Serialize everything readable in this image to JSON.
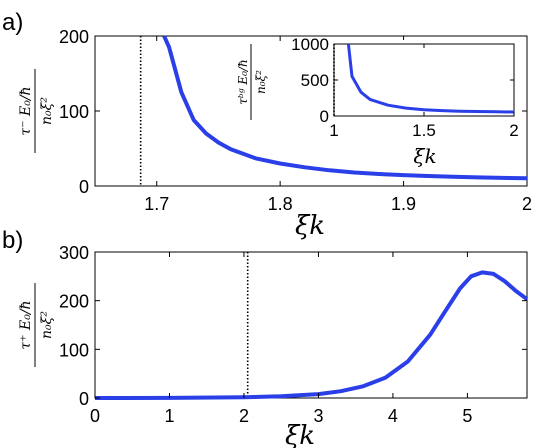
{
  "panel_labels": [
    "a)",
    "b)"
  ],
  "colors": {
    "curve": "#2a3fe8",
    "axis": "#000000",
    "marker_line": "#000000"
  },
  "chart_data": [
    {
      "id": "a",
      "type": "line",
      "xlabel": "ξk",
      "ylabel_num": "τ⁻ E₀/ħ",
      "ylabel_den": "n₀ξ²",
      "xlim": [
        1.65,
        2.0
      ],
      "ylim": [
        0,
        200
      ],
      "xticks": [
        1.7,
        1.8,
        1.9,
        2.0
      ],
      "xtick_labels": [
        "1.7",
        "1.8",
        "1.9",
        "2"
      ],
      "yticks": [
        0,
        100,
        200
      ],
      "ytick_labels": [
        "0",
        "100",
        "200"
      ],
      "vline_x": 1.687,
      "series": [
        {
          "x": [
            1.706,
            1.71,
            1.72,
            1.73,
            1.74,
            1.75,
            1.76,
            1.78,
            1.8,
            1.82,
            1.84,
            1.86,
            1.88,
            1.9,
            1.92,
            1.94,
            1.96,
            1.98,
            2.0
          ],
          "y": [
            210,
            185,
            125,
            88,
            70,
            58,
            49,
            37,
            30,
            25,
            21,
            18,
            16,
            14.5,
            13.3,
            12.3,
            11.5,
            10.8,
            10.3
          ]
        }
      ],
      "inset": {
        "type": "line",
        "xlabel": "ξk",
        "ylabel_num": "τᵇᵍ E₀/ħ",
        "ylabel_den": "n₀ξ²",
        "xlim": [
          1.0,
          2.0
        ],
        "ylim": [
          0,
          1000
        ],
        "xticks": [
          1.0,
          1.5,
          2.0
        ],
        "xtick_labels": [
          "1",
          "1.5",
          "2"
        ],
        "yticks": [
          0,
          500,
          1000
        ],
        "ytick_labels": [
          "0",
          "500",
          "1000"
        ],
        "vline_x": 1.0,
        "series": [
          {
            "x": [
              1.08,
              1.1,
              1.15,
              1.2,
              1.3,
              1.4,
              1.5,
              1.6,
              1.7,
              1.8,
              1.9,
              2.0
            ],
            "y": [
              1000,
              550,
              330,
              230,
              150,
              110,
              88,
              75,
              67,
              62,
              58,
              55
            ]
          }
        ]
      }
    },
    {
      "id": "b",
      "type": "line",
      "xlabel": "ξk",
      "ylabel_num": "τ⁺ E₀/ħ",
      "ylabel_den": "n₀ξ²",
      "xlim": [
        0,
        5.8
      ],
      "ylim": [
        0,
        300
      ],
      "xticks": [
        0,
        1,
        2,
        3,
        4,
        5
      ],
      "xtick_labels": [
        "0",
        "1",
        "2",
        "3",
        "4",
        "5"
      ],
      "yticks": [
        0,
        100,
        200,
        300
      ],
      "ytick_labels": [
        "0",
        "100",
        "200",
        "300"
      ],
      "vline_x": 2.05,
      "series": [
        {
          "x": [
            0,
            1,
            2,
            2.5,
            3,
            3.3,
            3.6,
            3.9,
            4.2,
            4.5,
            4.7,
            4.9,
            5.05,
            5.2,
            5.35,
            5.5,
            5.65,
            5.8
          ],
          "y": [
            0.1,
            0.3,
            1.5,
            3.5,
            8,
            14,
            24,
            42,
            75,
            130,
            178,
            225,
            250,
            258,
            255,
            240,
            220,
            203
          ]
        }
      ]
    }
  ]
}
